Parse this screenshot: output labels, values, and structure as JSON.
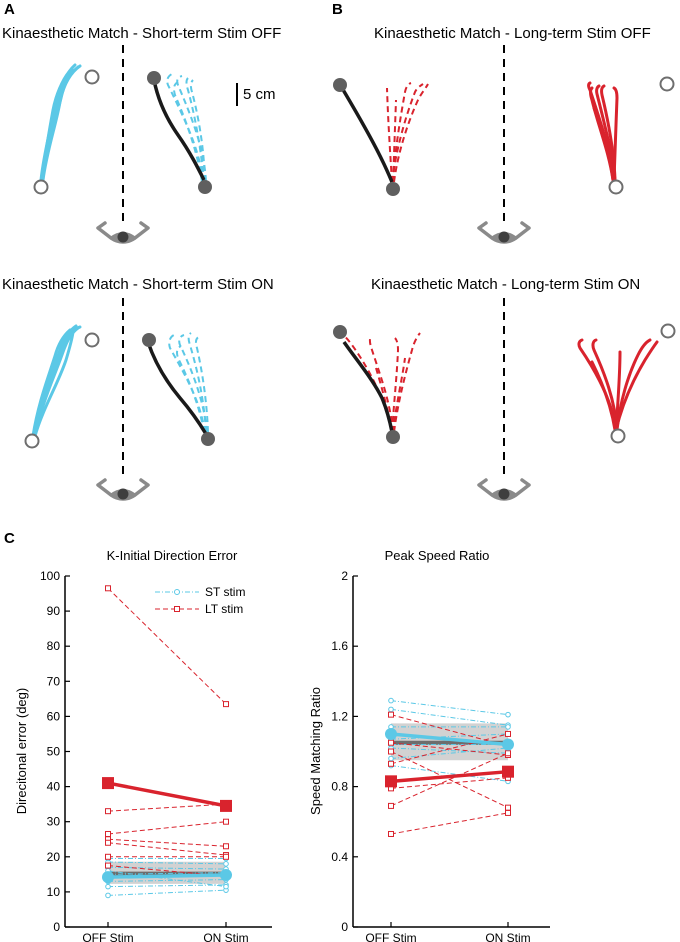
{
  "panels": {
    "A": {
      "label": "A",
      "top_title": "Kinaesthetic Match - Short-term Stim OFF",
      "bottom_title": "Kinaesthetic Match - Short-term Stim ON",
      "scale_bar": "5 cm",
      "color": "#5bc8e6"
    },
    "B": {
      "label": "B",
      "top_title": "Kinaesthetic Match - Long-term Stim OFF",
      "bottom_title": "Kinaesthetic Match - Long-term Stim ON",
      "color": "#d9232d"
    },
    "C": {
      "label": "C"
    }
  },
  "chart_data": [
    {
      "type": "line",
      "title": "K-Initial Direction Error",
      "xlabel": "",
      "ylabel": "Direcitonal error (deg)",
      "categories": [
        "OFF Stim",
        "ON Stim"
      ],
      "ylim": [
        0,
        100
      ],
      "yticks": [
        0,
        10,
        20,
        30,
        40,
        50,
        60,
        70,
        80,
        90,
        100
      ],
      "legend": {
        "position": "top-right",
        "entries": [
          "ST stim",
          "LT stim"
        ]
      },
      "band": {
        "center": [
          15.2,
          15.2
        ],
        "lower": [
          12.3,
          12.3
        ],
        "upper": [
          18.6,
          18.6
        ]
      },
      "series": [
        {
          "name": "ST stim",
          "color": "#5bc8e6",
          "mean": [
            14.2,
            14.8
          ],
          "subjects": [
            [
              9.0,
              10.5
            ],
            [
              11.5,
              12.0
            ],
            [
              13.0,
              13.5
            ],
            [
              15.0,
              15.5
            ],
            [
              17.0,
              16.5
            ],
            [
              18.5,
              18.0
            ],
            [
              19.5,
              19.5
            ],
            [
              16.0,
              11.5
            ]
          ]
        },
        {
          "name": "LT stim",
          "color": "#d9232d",
          "mean": [
            41.0,
            34.5
          ],
          "subjects": [
            [
              96.5,
              63.5
            ],
            [
              33.0,
              35.0
            ],
            [
              26.5,
              30.0
            ],
            [
              25.0,
              23.0
            ],
            [
              24.0,
              20.5
            ],
            [
              20.0,
              20.0
            ],
            [
              17.5,
              14.5
            ]
          ]
        }
      ]
    },
    {
      "type": "line",
      "title": "Peak Speed Ratio",
      "xlabel": "",
      "ylabel": "Speed Matching Ratio",
      "categories": [
        "OFF Stim",
        "ON Stim"
      ],
      "ylim": [
        0,
        2
      ],
      "yticks": [
        0,
        0.4,
        0.8,
        1.2,
        1.6,
        2
      ],
      "ytick_labels": [
        "0",
        "0.4",
        "0.8",
        "1.2",
        "1.6",
        "2"
      ],
      "band": {
        "center": [
          1.05,
          1.05
        ],
        "lower": [
          0.95,
          0.95
        ],
        "upper": [
          1.16,
          1.16
        ]
      },
      "series": [
        {
          "name": "ST stim",
          "color": "#5bc8e6",
          "mean": [
            1.1,
            1.04
          ],
          "subjects": [
            [
              1.29,
              1.21
            ],
            [
              1.24,
              1.15
            ],
            [
              1.14,
              1.14
            ],
            [
              1.07,
              1.1
            ],
            [
              1.02,
              0.99
            ],
            [
              0.96,
              1.02
            ],
            [
              0.92,
              0.83
            ],
            [
              1.04,
              1.04
            ]
          ]
        },
        {
          "name": "LT stim",
          "color": "#d9232d",
          "mean": [
            0.83,
            0.885
          ],
          "subjects": [
            [
              1.21,
              1.03
            ],
            [
              1.05,
              0.98
            ],
            [
              0.93,
              1.1
            ],
            [
              0.79,
              0.85
            ],
            [
              0.69,
              0.99
            ],
            [
              0.53,
              0.65
            ],
            [
              1.0,
              0.68
            ]
          ]
        }
      ]
    }
  ]
}
